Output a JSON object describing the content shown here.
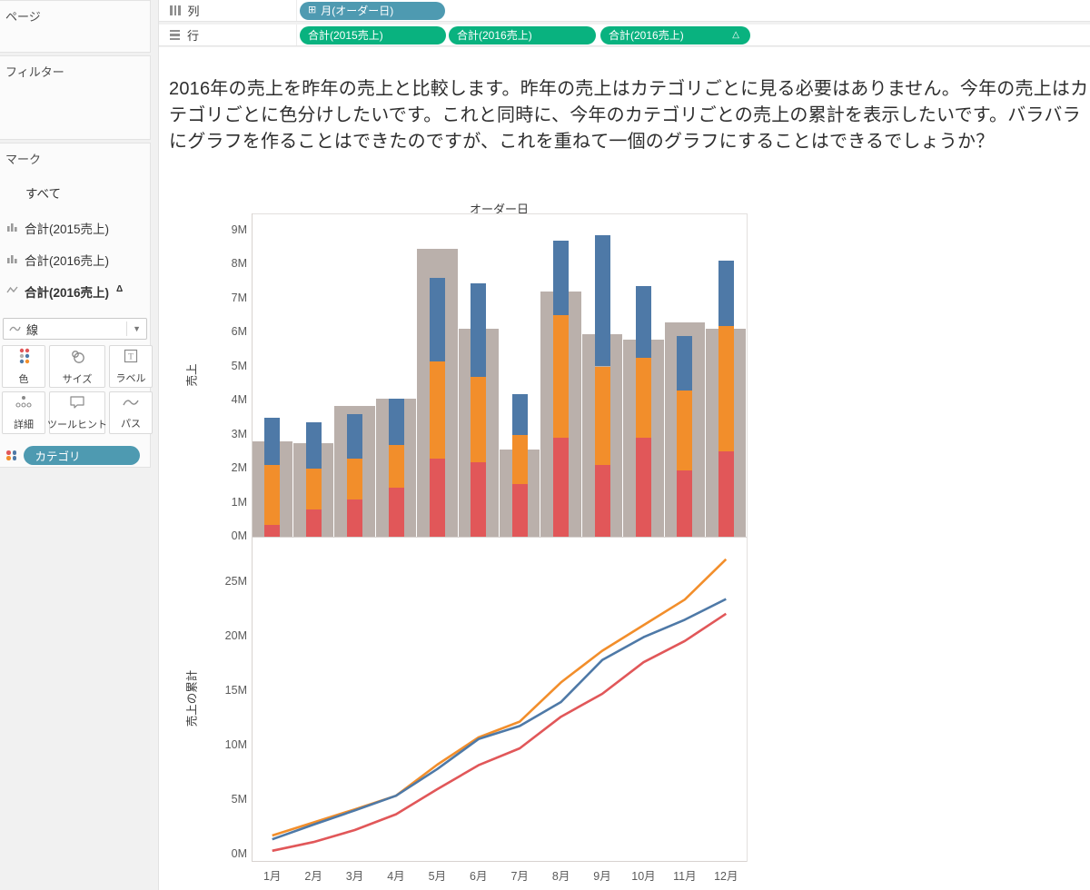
{
  "colors": {
    "pill_blue": "#4e9ab1",
    "pill_green": "#09b27f",
    "bar_gray": "#bab0ab",
    "cat_red": "#e15759",
    "cat_orange": "#f28e2b",
    "cat_blue": "#4e79a7"
  },
  "shelves": {
    "columns_label": "列",
    "columns_pill": {
      "icon": "plus-box-icon",
      "label": "月(オーダー日)"
    },
    "rows_label": "行",
    "rows_pills": [
      {
        "label": "合計(2015売上)",
        "suffix": ""
      },
      {
        "label": "合計(2016売上)",
        "suffix": ""
      },
      {
        "label": "合計(2016売上)",
        "suffix": "△"
      }
    ]
  },
  "sidebar": {
    "pages_label": "ページ",
    "filters_label": "フィルター",
    "marks_label": "マーク",
    "marks_all_label": "すべて",
    "marks_items": [
      {
        "icon": "bar-chart-icon",
        "label": "合計(2015売上)",
        "suffix": ""
      },
      {
        "icon": "bar-chart-icon",
        "label": "合計(2016売上)",
        "suffix": ""
      },
      {
        "icon": "line-chart-icon",
        "label": "合計(2016売上)",
        "suffix": "Δ"
      }
    ],
    "mark_type_dropdown": {
      "icon": "line-chart-icon",
      "value": "線"
    },
    "mark_buttons": [
      {
        "icon": "color-icon",
        "label": "色"
      },
      {
        "icon": "size-icon",
        "label": "サイズ"
      },
      {
        "icon": "label-icon",
        "label": "ラベル"
      },
      {
        "icon": "detail-icon",
        "label": "詳細"
      },
      {
        "icon": "tooltip-icon",
        "label": "ツールヒント"
      },
      {
        "icon": "path-icon",
        "label": "パス"
      }
    ],
    "category_pill": "カテゴリ"
  },
  "main": {
    "question_text": "2016年の売上を昨年の売上と比較します。昨年の売上はカテゴリごとに見る必要はありません。今年の売上はカテゴリごとに色分けしたいです。これと同時に、今年のカテゴリごとの売上の累計を表示したいです。バラバラにグラフを作ることはできたのですが、これを重ねて一個のグラフにすることはできるでしょうか？"
  },
  "chart_data": [
    {
      "type": "bar",
      "title": "オーダー日",
      "ylabel": "売上",
      "xlabel": "",
      "categories": [
        "1月",
        "2月",
        "3月",
        "4月",
        "5月",
        "6月",
        "7月",
        "8月",
        "9月",
        "10月",
        "11月",
        "12月"
      ],
      "ylim": [
        0,
        9
      ],
      "yticks": [
        0,
        1,
        2,
        3,
        4,
        5,
        6,
        7,
        8,
        9
      ],
      "ytick_suffix": "M",
      "grid": false,
      "legend_position": "none",
      "series": [
        {
          "name": "2015-total",
          "color": "#bab0ab",
          "stack": false,
          "width": "wide",
          "values": [
            2.8,
            2.75,
            3.85,
            4.05,
            8.45,
            6.1,
            2.55,
            7.2,
            5.95,
            5.8,
            6.3,
            6.1
          ]
        },
        {
          "name": "2016-category-red",
          "color": "#e15759",
          "stack": true,
          "width": "narrow",
          "values": [
            0.35,
            0.8,
            1.1,
            1.45,
            2.3,
            2.2,
            1.55,
            2.9,
            2.1,
            2.9,
            1.95,
            2.5
          ]
        },
        {
          "name": "2016-category-orange",
          "color": "#f28e2b",
          "stack": true,
          "width": "narrow",
          "values": [
            1.75,
            1.2,
            1.2,
            1.25,
            2.85,
            2.5,
            1.45,
            3.6,
            2.9,
            2.35,
            2.35,
            3.7
          ]
        },
        {
          "name": "2016-category-blue",
          "color": "#4e79a7",
          "stack": true,
          "width": "narrow",
          "values": [
            1.4,
            1.35,
            1.3,
            1.35,
            2.45,
            2.75,
            1.2,
            2.2,
            3.85,
            2.1,
            1.6,
            1.9
          ]
        }
      ]
    },
    {
      "type": "line",
      "title": "",
      "ylabel": "売上の累計",
      "xlabel": "",
      "categories": [
        "1月",
        "2月",
        "3月",
        "4月",
        "5月",
        "6月",
        "7月",
        "8月",
        "9月",
        "10月",
        "11月",
        "12月"
      ],
      "ylim": [
        0,
        27.5
      ],
      "yticks": [
        0,
        5,
        10,
        15,
        20,
        25
      ],
      "ytick_suffix": "M",
      "grid": false,
      "legend_position": "none",
      "series": [
        {
          "name": "cumulative-category-red",
          "color": "#e15759",
          "values": [
            0.35,
            1.15,
            2.25,
            3.7,
            6.0,
            8.2,
            9.75,
            12.65,
            14.75,
            17.65,
            19.6,
            22.1
          ]
        },
        {
          "name": "cumulative-category-orange",
          "color": "#f28e2b",
          "values": [
            1.75,
            2.95,
            4.15,
            5.4,
            8.25,
            10.75,
            12.2,
            15.8,
            18.7,
            21.05,
            23.4,
            27.1
          ]
        },
        {
          "name": "cumulative-category-blue",
          "color": "#4e79a7",
          "values": [
            1.4,
            2.75,
            4.05,
            5.4,
            7.85,
            10.6,
            11.8,
            14.0,
            17.85,
            19.95,
            21.55,
            23.45
          ]
        }
      ]
    }
  ]
}
